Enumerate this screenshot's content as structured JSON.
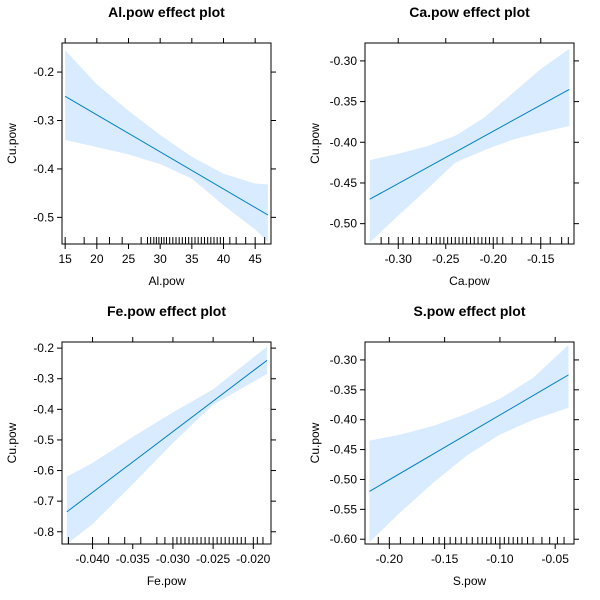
{
  "colors": {
    "line": "#0080c0",
    "band": "#d9ebff",
    "frame": "#000000"
  },
  "chart_data": [
    {
      "type": "line",
      "title": "Al.pow effect plot",
      "xlabel": "Al.pow",
      "ylabel": "Cu.pow",
      "xlim": [
        14.5,
        47.5
      ],
      "ylim": [
        -0.555,
        -0.14
      ],
      "xticks": [
        15,
        20,
        25,
        30,
        35,
        40,
        45
      ],
      "xtick_labels": [
        "15",
        "20",
        "25",
        "30",
        "35",
        "40",
        "45"
      ],
      "yticks": [
        -0.2,
        -0.3,
        -0.4,
        -0.5
      ],
      "ytick_labels": [
        "-0.2",
        "-0.3",
        "-0.4",
        "-0.5"
      ],
      "fit": {
        "x": [
          15,
          47
        ],
        "y": [
          -0.25,
          -0.495
        ]
      },
      "band_x": [
        15,
        20,
        25,
        30,
        35,
        40,
        45,
        47
      ],
      "band_upper": [
        -0.155,
        -0.225,
        -0.28,
        -0.33,
        -0.375,
        -0.41,
        -0.43,
        -0.432
      ],
      "band_lower": [
        -0.34,
        -0.355,
        -0.37,
        -0.39,
        -0.42,
        -0.475,
        -0.525,
        -0.55
      ],
      "rug": [
        15,
        18,
        20,
        22,
        24,
        27,
        28,
        28.5,
        29,
        29.4,
        29.8,
        30.2,
        30.6,
        31,
        31.5,
        32,
        32.5,
        33,
        33.5,
        34,
        34.5,
        35,
        35.5,
        36,
        36.5,
        37,
        37.5,
        38,
        38.5,
        39,
        39.5,
        40,
        41,
        42,
        43.5,
        45,
        46.5
      ]
    },
    {
      "type": "line",
      "title": "Ca.pow effect plot",
      "xlabel": "Ca.pow",
      "ylabel": "Cu.pow",
      "xlim": [
        -0.335,
        -0.115
      ],
      "ylim": [
        -0.525,
        -0.278
      ],
      "xticks": [
        -0.3,
        -0.25,
        -0.2,
        -0.15
      ],
      "xtick_labels": [
        "-0.30",
        "-0.25",
        "-0.20",
        "-0.15"
      ],
      "yticks": [
        -0.3,
        -0.35,
        -0.4,
        -0.45,
        -0.5
      ],
      "ytick_labels": [
        "-0.30",
        "-0.35",
        "-0.40",
        "-0.45",
        "-0.50"
      ],
      "fit": {
        "x": [
          -0.33,
          -0.12
        ],
        "y": [
          -0.47,
          -0.335
        ]
      },
      "band_x": [
        -0.33,
        -0.3,
        -0.27,
        -0.24,
        -0.21,
        -0.18,
        -0.15,
        -0.12
      ],
      "band_upper": [
        -0.422,
        -0.414,
        -0.405,
        -0.392,
        -0.37,
        -0.34,
        -0.31,
        -0.285
      ],
      "band_lower": [
        -0.523,
        -0.49,
        -0.458,
        -0.425,
        -0.41,
        -0.397,
        -0.388,
        -0.38
      ],
      "rug": [
        -0.318,
        -0.31,
        -0.3,
        -0.295,
        -0.285,
        -0.278,
        -0.27,
        -0.265,
        -0.26,
        -0.256,
        -0.252,
        -0.248,
        -0.244,
        -0.24,
        -0.236,
        -0.232,
        -0.228,
        -0.224,
        -0.22,
        -0.216,
        -0.212,
        -0.208,
        -0.204,
        -0.2,
        -0.196,
        -0.19,
        -0.18,
        -0.17,
        -0.16,
        -0.15,
        -0.14,
        -0.128,
        -0.121
      ]
    },
    {
      "type": "line",
      "title": "Fe.pow effect plot",
      "xlabel": "Fe.pow",
      "ylabel": "Cu.pow",
      "xlim": [
        -0.0438,
        -0.0178
      ],
      "ylim": [
        -0.84,
        -0.18
      ],
      "xticks": [
        -0.04,
        -0.035,
        -0.03,
        -0.025,
        -0.02
      ],
      "xtick_labels": [
        "-0.040",
        "-0.035",
        "-0.030",
        "-0.025",
        "-0.020"
      ],
      "yticks": [
        -0.2,
        -0.3,
        -0.4,
        -0.5,
        -0.6,
        -0.7,
        -0.8
      ],
      "ytick_labels": [
        "-0.2",
        "-0.3",
        "-0.4",
        "-0.5",
        "-0.6",
        "-0.7",
        "-0.8"
      ],
      "fit": {
        "x": [
          -0.0432,
          -0.0183
        ],
        "y": [
          -0.735,
          -0.24
        ]
      },
      "band_x": [
        -0.0432,
        -0.04,
        -0.035,
        -0.03,
        -0.025,
        -0.0183
      ],
      "band_upper": [
        -0.62,
        -0.575,
        -0.49,
        -0.41,
        -0.335,
        -0.195
      ],
      "band_lower": [
        -0.84,
        -0.775,
        -0.645,
        -0.51,
        -0.385,
        -0.285
      ],
      "rug": [
        -0.043,
        -0.04,
        -0.038,
        -0.036,
        -0.034,
        -0.032,
        -0.031,
        -0.03,
        -0.0295,
        -0.029,
        -0.0285,
        -0.028,
        -0.0275,
        -0.027,
        -0.0265,
        -0.026,
        -0.0255,
        -0.025,
        -0.0245,
        -0.024,
        -0.0235,
        -0.023,
        -0.0225,
        -0.022,
        -0.0215,
        -0.021,
        -0.02,
        -0.0195,
        -0.0188
      ]
    },
    {
      "type": "line",
      "title": "S.pow effect plot",
      "xlabel": "S.pow",
      "ylabel": "Cu.pow",
      "xlim": [
        -0.222,
        -0.033
      ],
      "ylim": [
        -0.608,
        -0.27
      ],
      "xticks": [
        -0.2,
        -0.15,
        -0.1,
        -0.05
      ],
      "xtick_labels": [
        "-0.20",
        "-0.15",
        "-0.10",
        "-0.05"
      ],
      "yticks": [
        -0.3,
        -0.35,
        -0.4,
        -0.45,
        -0.5,
        -0.55,
        -0.6
      ],
      "ytick_labels": [
        "-0.30",
        "-0.35",
        "-0.40",
        "-0.45",
        "-0.50",
        "-0.55",
        "-0.60"
      ],
      "fit": {
        "x": [
          -0.218,
          -0.038
        ],
        "y": [
          -0.52,
          -0.325
        ]
      },
      "band_x": [
        -0.218,
        -0.19,
        -0.16,
        -0.13,
        -0.1,
        -0.07,
        -0.038
      ],
      "band_upper": [
        -0.435,
        -0.425,
        -0.41,
        -0.39,
        -0.365,
        -0.33,
        -0.275
      ],
      "band_lower": [
        -0.605,
        -0.555,
        -0.505,
        -0.46,
        -0.425,
        -0.4,
        -0.38
      ],
      "rug": [
        -0.21,
        -0.2,
        -0.19,
        -0.178,
        -0.17,
        -0.16,
        -0.155,
        -0.15,
        -0.145,
        -0.14,
        -0.135,
        -0.13,
        -0.125,
        -0.12,
        -0.116,
        -0.112,
        -0.108,
        -0.104,
        -0.1,
        -0.096,
        -0.092,
        -0.088,
        -0.084,
        -0.08,
        -0.075,
        -0.07,
        -0.062,
        -0.055,
        -0.048,
        -0.042
      ]
    }
  ]
}
